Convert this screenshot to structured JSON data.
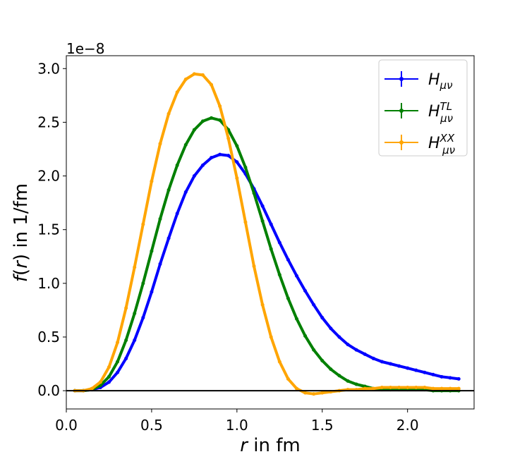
{
  "chart_data": {
    "type": "line",
    "offset_label": "1e−8",
    "x_label": {
      "var": "r",
      "rest": " in fm"
    },
    "y_label": {
      "var": "f",
      "open": "(",
      "arg": "r",
      "close": ")",
      "rest": " in 1/fm"
    },
    "x": [
      0.05,
      0.1,
      0.15,
      0.2,
      0.25,
      0.3,
      0.35,
      0.4,
      0.45,
      0.5,
      0.55,
      0.6,
      0.65,
      0.7,
      0.75,
      0.8,
      0.85,
      0.9,
      0.95,
      1.0,
      1.05,
      1.1,
      1.15,
      1.2,
      1.25,
      1.3,
      1.35,
      1.4,
      1.45,
      1.5,
      1.55,
      1.6,
      1.65,
      1.7,
      1.75,
      1.8,
      1.85,
      1.9,
      1.95,
      2.0,
      2.05,
      2.1,
      2.15,
      2.2,
      2.25,
      2.3
    ],
    "series": [
      {
        "name": "H",
        "subscript": "μν",
        "color": "#0000ff",
        "values": [
          0,
          0,
          0.01,
          0.03,
          0.08,
          0.17,
          0.3,
          0.47,
          0.68,
          0.92,
          1.18,
          1.42,
          1.65,
          1.85,
          2.0,
          2.1,
          2.17,
          2.2,
          2.19,
          2.13,
          2.02,
          1.88,
          1.72,
          1.55,
          1.38,
          1.22,
          1.07,
          0.93,
          0.8,
          0.68,
          0.58,
          0.5,
          0.43,
          0.38,
          0.34,
          0.3,
          0.27,
          0.25,
          0.23,
          0.21,
          0.19,
          0.17,
          0.15,
          0.13,
          0.12,
          0.11
        ]
      },
      {
        "name": "H",
        "subscript": "μν",
        "superscript": "TL",
        "color": "#008000",
        "values": [
          0,
          0,
          0.01,
          0.05,
          0.13,
          0.27,
          0.47,
          0.72,
          1.0,
          1.3,
          1.6,
          1.87,
          2.1,
          2.29,
          2.43,
          2.51,
          2.54,
          2.52,
          2.43,
          2.28,
          2.08,
          1.84,
          1.58,
          1.32,
          1.08,
          0.86,
          0.67,
          0.51,
          0.38,
          0.28,
          0.2,
          0.14,
          0.09,
          0.06,
          0.04,
          0.02,
          0.01,
          0.01,
          0.01,
          0.01,
          0.01,
          0.01,
          0,
          0,
          0,
          0
        ]
      },
      {
        "name": "H",
        "subscript": "μν",
        "superscript": "XX",
        "color": "#ffa500",
        "values": [
          0,
          0,
          0.02,
          0.08,
          0.22,
          0.45,
          0.77,
          1.15,
          1.55,
          1.95,
          2.3,
          2.58,
          2.78,
          2.9,
          2.95,
          2.94,
          2.85,
          2.65,
          2.35,
          1.98,
          1.57,
          1.16,
          0.8,
          0.5,
          0.27,
          0.11,
          0.02,
          -0.02,
          -0.03,
          -0.02,
          -0.01,
          0,
          0.01,
          0.01,
          0.02,
          0.02,
          0.03,
          0.03,
          0.03,
          0.03,
          0.03,
          0.03,
          0.02,
          0.02,
          0.02,
          0.02
        ]
      }
    ],
    "hline": 0,
    "xlim": [
      0,
      2.39
    ],
    "ylim": [
      -0.17,
      3.12
    ],
    "xticks": [
      {
        "value": 0,
        "label": "0.0"
      },
      0.5,
      {
        "value": 1,
        "label": "1.0"
      },
      1.5,
      {
        "value": 2,
        "label": "2.0"
      }
    ],
    "yticks": [
      {
        "value": 0,
        "label": "0.0"
      },
      0.5,
      {
        "value": 1,
        "label": "1.0"
      },
      1.5,
      {
        "value": 2,
        "label": "2.0"
      },
      2.5,
      {
        "value": 3,
        "label": "3.0"
      }
    ],
    "legend": "upper right",
    "grid": false
  }
}
